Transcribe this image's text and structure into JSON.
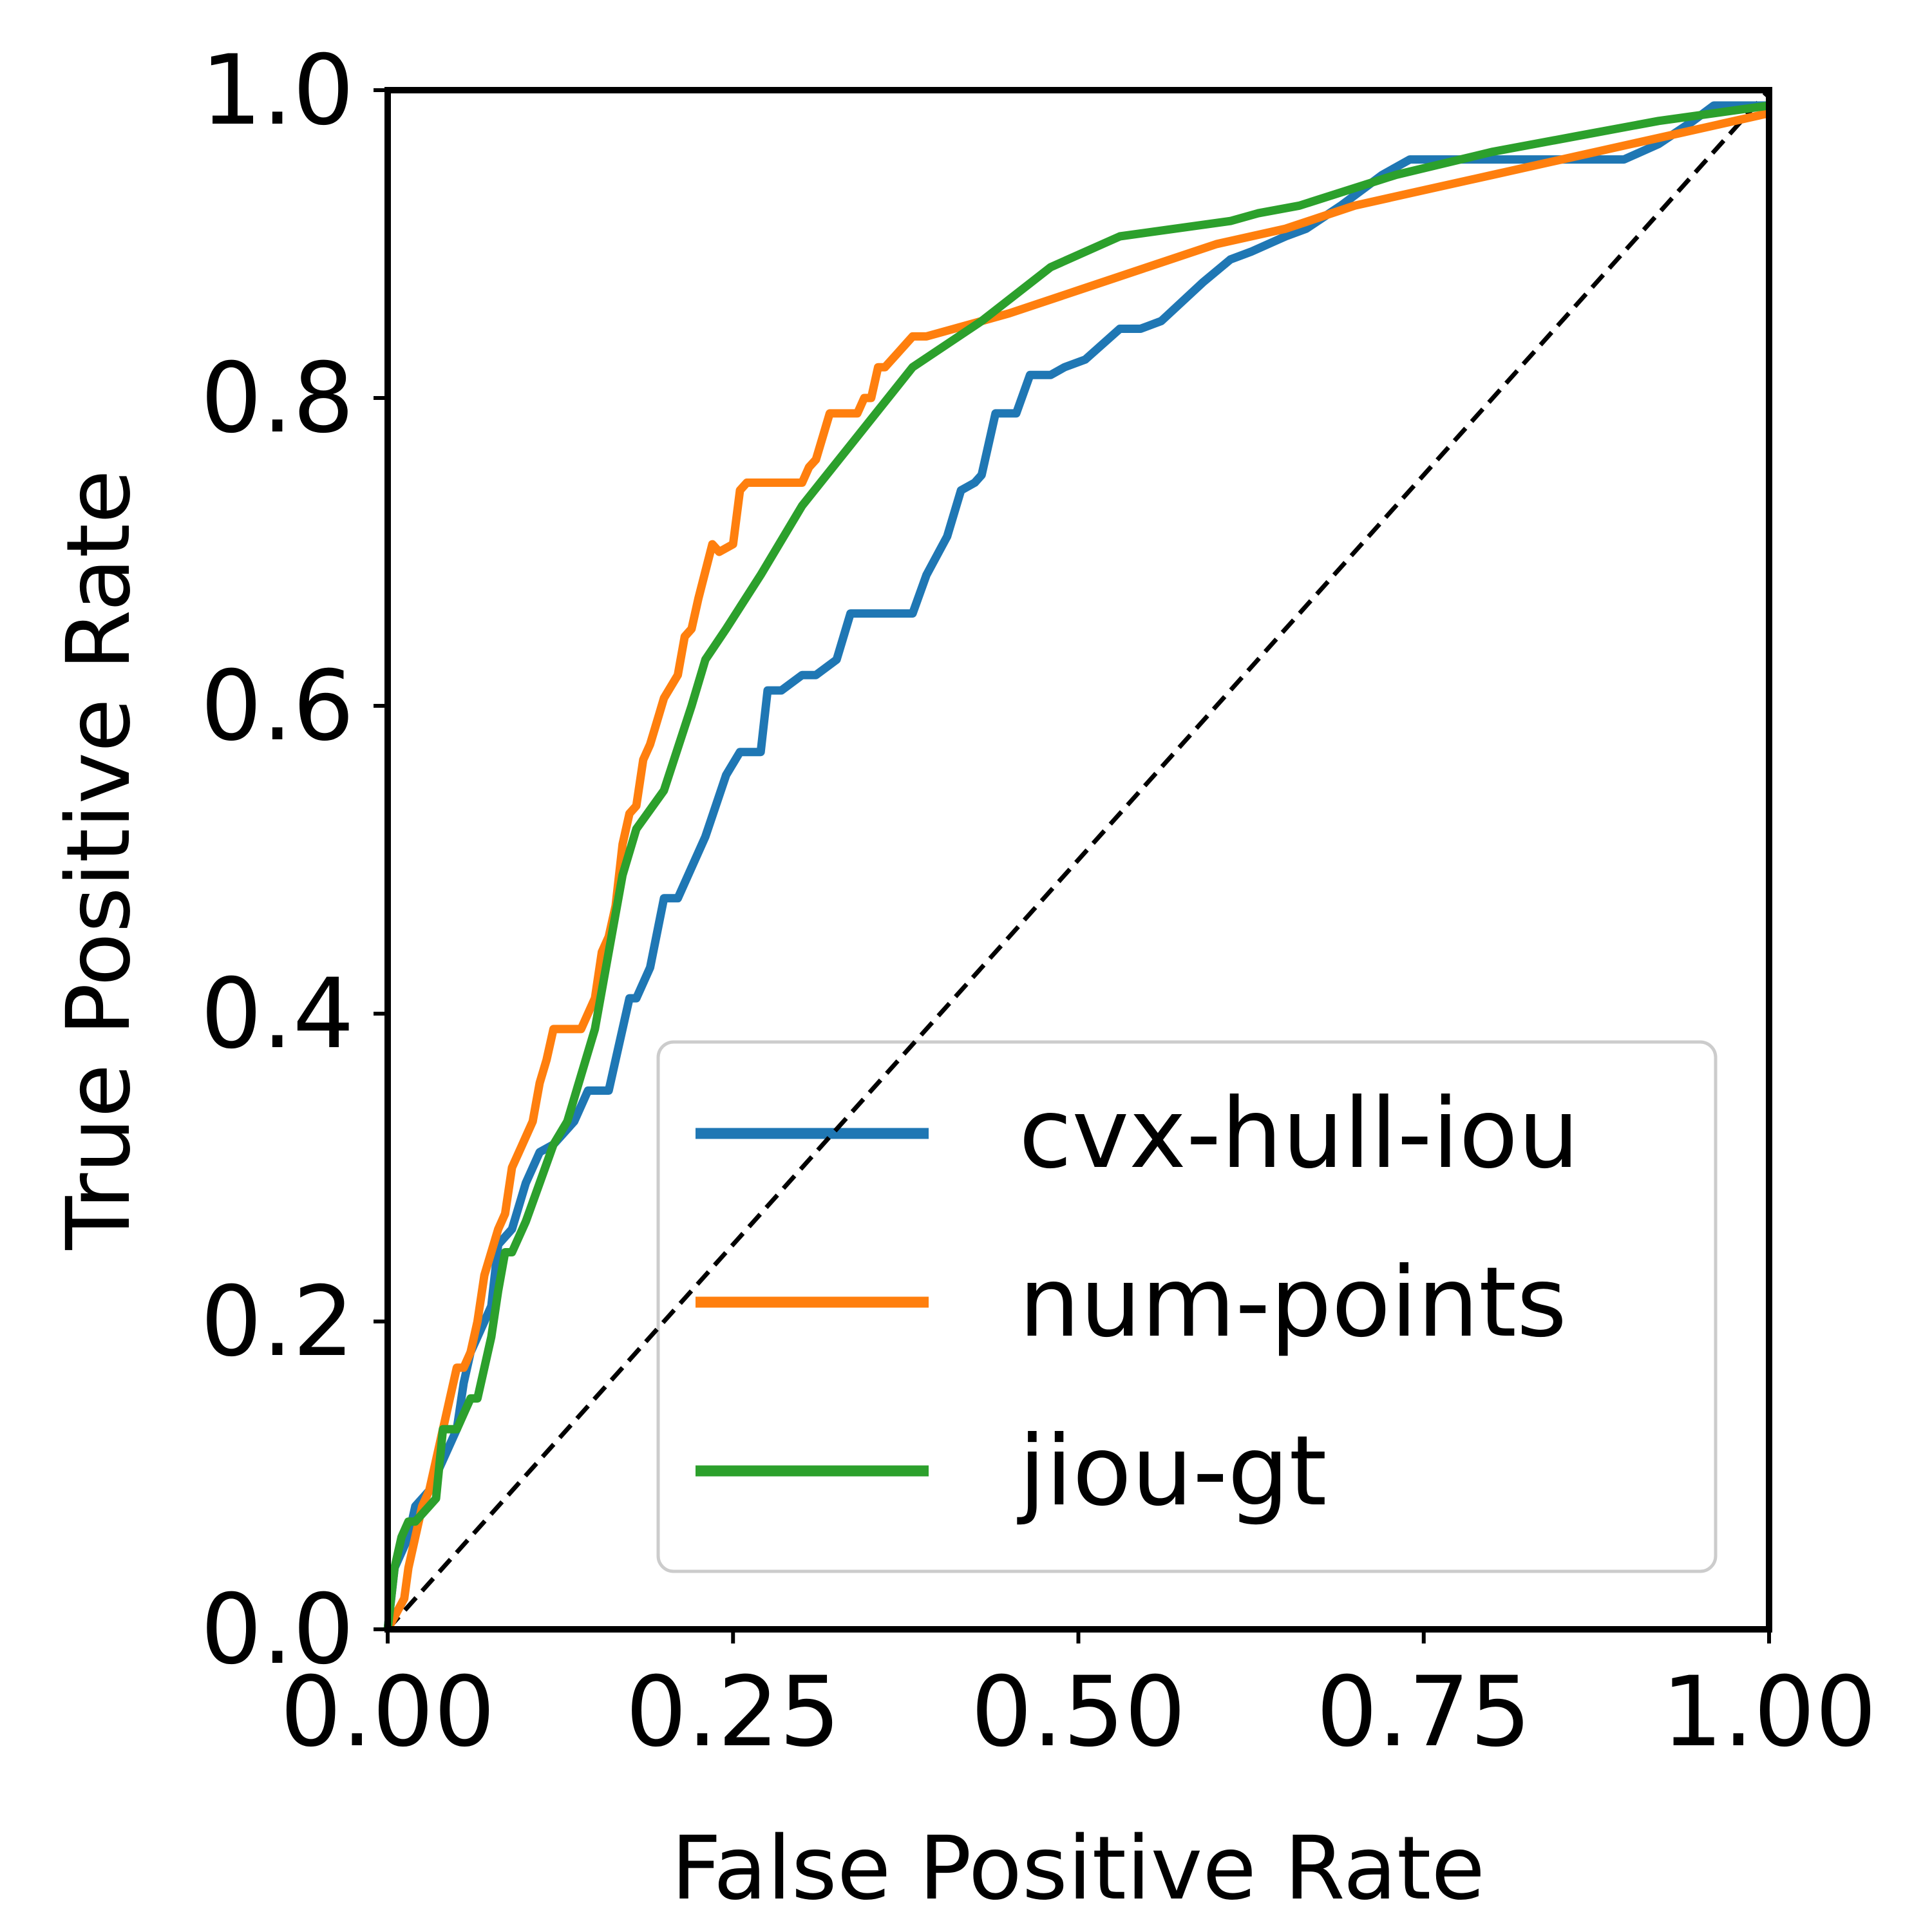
{
  "chart_data": {
    "type": "line",
    "xlabel": "False Positive Rate",
    "ylabel": "True Positive Rate",
    "xlim": [
      0,
      1
    ],
    "ylim": [
      0,
      1
    ],
    "grid": false,
    "legend_position": "lower-right",
    "x_ticks": [
      0.0,
      0.25,
      0.5,
      0.75,
      1.0
    ],
    "x_tick_labels": [
      "0.00",
      "0.25",
      "0.50",
      "0.75",
      "1.00"
    ],
    "y_ticks": [
      0.0,
      0.2,
      0.4,
      0.6,
      0.8,
      1.0
    ],
    "y_tick_labels": [
      "0.0",
      "0.2",
      "0.4",
      "0.6",
      "0.8",
      "1.0"
    ],
    "reference_line": {
      "name": "chance",
      "x": [
        0,
        1
      ],
      "y": [
        0,
        1
      ],
      "color": "#000000",
      "style": "dashed"
    },
    "series": [
      {
        "name": "cvx-hull-iou",
        "color": "#1f77b4",
        "x": [
          0.0,
          0.005,
          0.015,
          0.02,
          0.03,
          0.04,
          0.05,
          0.055,
          0.06,
          0.075,
          0.08,
          0.09,
          0.1,
          0.11,
          0.12,
          0.135,
          0.145,
          0.16,
          0.165,
          0.175,
          0.18,
          0.19,
          0.2,
          0.21,
          0.23,
          0.245,
          0.255,
          0.27,
          0.275,
          0.285,
          0.3,
          0.31,
          0.325,
          0.335,
          0.35,
          0.38,
          0.39,
          0.405,
          0.415,
          0.425,
          0.43,
          0.44,
          0.455,
          0.465,
          0.48,
          0.49,
          0.505,
          0.53,
          0.545,
          0.56,
          0.59,
          0.61,
          0.625,
          0.65,
          0.665,
          0.69,
          0.72,
          0.74,
          0.76,
          0.79,
          0.83,
          0.895,
          0.92,
          0.945,
          0.96,
          1.0
        ],
        "y": [
          0.0,
          0.04,
          0.06,
          0.08,
          0.09,
          0.11,
          0.13,
          0.16,
          0.18,
          0.21,
          0.25,
          0.26,
          0.29,
          0.31,
          0.315,
          0.33,
          0.35,
          0.35,
          0.37,
          0.41,
          0.41,
          0.43,
          0.475,
          0.475,
          0.515,
          0.555,
          0.57,
          0.57,
          0.61,
          0.61,
          0.62,
          0.62,
          0.63,
          0.66,
          0.66,
          0.66,
          0.685,
          0.71,
          0.74,
          0.745,
          0.75,
          0.79,
          0.79,
          0.815,
          0.815,
          0.82,
          0.825,
          0.845,
          0.845,
          0.85,
          0.875,
          0.89,
          0.895,
          0.905,
          0.91,
          0.925,
          0.945,
          0.955,
          0.955,
          0.955,
          0.955,
          0.955,
          0.965,
          0.98,
          0.99,
          0.99
        ]
      },
      {
        "name": "num-points",
        "color": "#ff7f0e",
        "x": [
          0.0,
          0.012,
          0.015,
          0.02,
          0.025,
          0.03,
          0.04,
          0.045,
          0.05,
          0.055,
          0.06,
          0.065,
          0.07,
          0.08,
          0.085,
          0.09,
          0.095,
          0.1,
          0.105,
          0.11,
          0.115,
          0.12,
          0.13,
          0.135,
          0.14,
          0.145,
          0.15,
          0.155,
          0.16,
          0.165,
          0.17,
          0.175,
          0.18,
          0.185,
          0.19,
          0.195,
          0.2,
          0.21,
          0.215,
          0.22,
          0.225,
          0.235,
          0.24,
          0.25,
          0.255,
          0.26,
          0.265,
          0.275,
          0.3,
          0.305,
          0.31,
          0.315,
          0.32,
          0.33,
          0.34,
          0.345,
          0.35,
          0.355,
          0.36,
          0.365,
          0.37,
          0.375,
          0.38,
          0.39,
          0.41,
          0.45,
          0.5,
          0.55,
          0.6,
          0.65,
          0.7,
          0.75,
          0.8,
          0.85,
          0.9,
          0.95,
          1.0
        ],
        "y": [
          0.0,
          0.02,
          0.04,
          0.06,
          0.08,
          0.09,
          0.13,
          0.15,
          0.17,
          0.17,
          0.18,
          0.2,
          0.23,
          0.26,
          0.27,
          0.3,
          0.31,
          0.32,
          0.33,
          0.355,
          0.37,
          0.39,
          0.39,
          0.39,
          0.39,
          0.4,
          0.41,
          0.44,
          0.45,
          0.47,
          0.51,
          0.53,
          0.535,
          0.565,
          0.575,
          0.59,
          0.605,
          0.62,
          0.645,
          0.65,
          0.67,
          0.705,
          0.7,
          0.705,
          0.74,
          0.745,
          0.745,
          0.745,
          0.745,
          0.755,
          0.76,
          0.775,
          0.79,
          0.79,
          0.79,
          0.8,
          0.8,
          0.82,
          0.82,
          0.825,
          0.83,
          0.835,
          0.84,
          0.84,
          0.845,
          0.855,
          0.87,
          0.885,
          0.9,
          0.91,
          0.925,
          0.935,
          0.945,
          0.955,
          0.965,
          0.975,
          0.985
        ]
      },
      {
        "name": "jiou-gt",
        "color": "#2ca02c",
        "x": [
          0.0,
          0.005,
          0.01,
          0.015,
          0.02,
          0.025,
          0.03,
          0.035,
          0.04,
          0.05,
          0.055,
          0.06,
          0.065,
          0.075,
          0.08,
          0.085,
          0.09,
          0.1,
          0.11,
          0.12,
          0.13,
          0.14,
          0.15,
          0.16,
          0.17,
          0.18,
          0.2,
          0.22,
          0.23,
          0.245,
          0.27,
          0.3,
          0.34,
          0.38,
          0.43,
          0.48,
          0.53,
          0.61,
          0.63,
          0.66,
          0.73,
          0.8,
          0.86,
          0.92,
          1.0
        ],
        "y": [
          0.0,
          0.04,
          0.06,
          0.07,
          0.07,
          0.075,
          0.08,
          0.085,
          0.13,
          0.13,
          0.14,
          0.15,
          0.15,
          0.19,
          0.22,
          0.245,
          0.245,
          0.265,
          0.29,
          0.315,
          0.33,
          0.36,
          0.39,
          0.44,
          0.49,
          0.52,
          0.545,
          0.6,
          0.63,
          0.65,
          0.685,
          0.73,
          0.775,
          0.82,
          0.85,
          0.885,
          0.905,
          0.915,
          0.92,
          0.925,
          0.945,
          0.96,
          0.97,
          0.98,
          0.99
        ]
      }
    ]
  }
}
